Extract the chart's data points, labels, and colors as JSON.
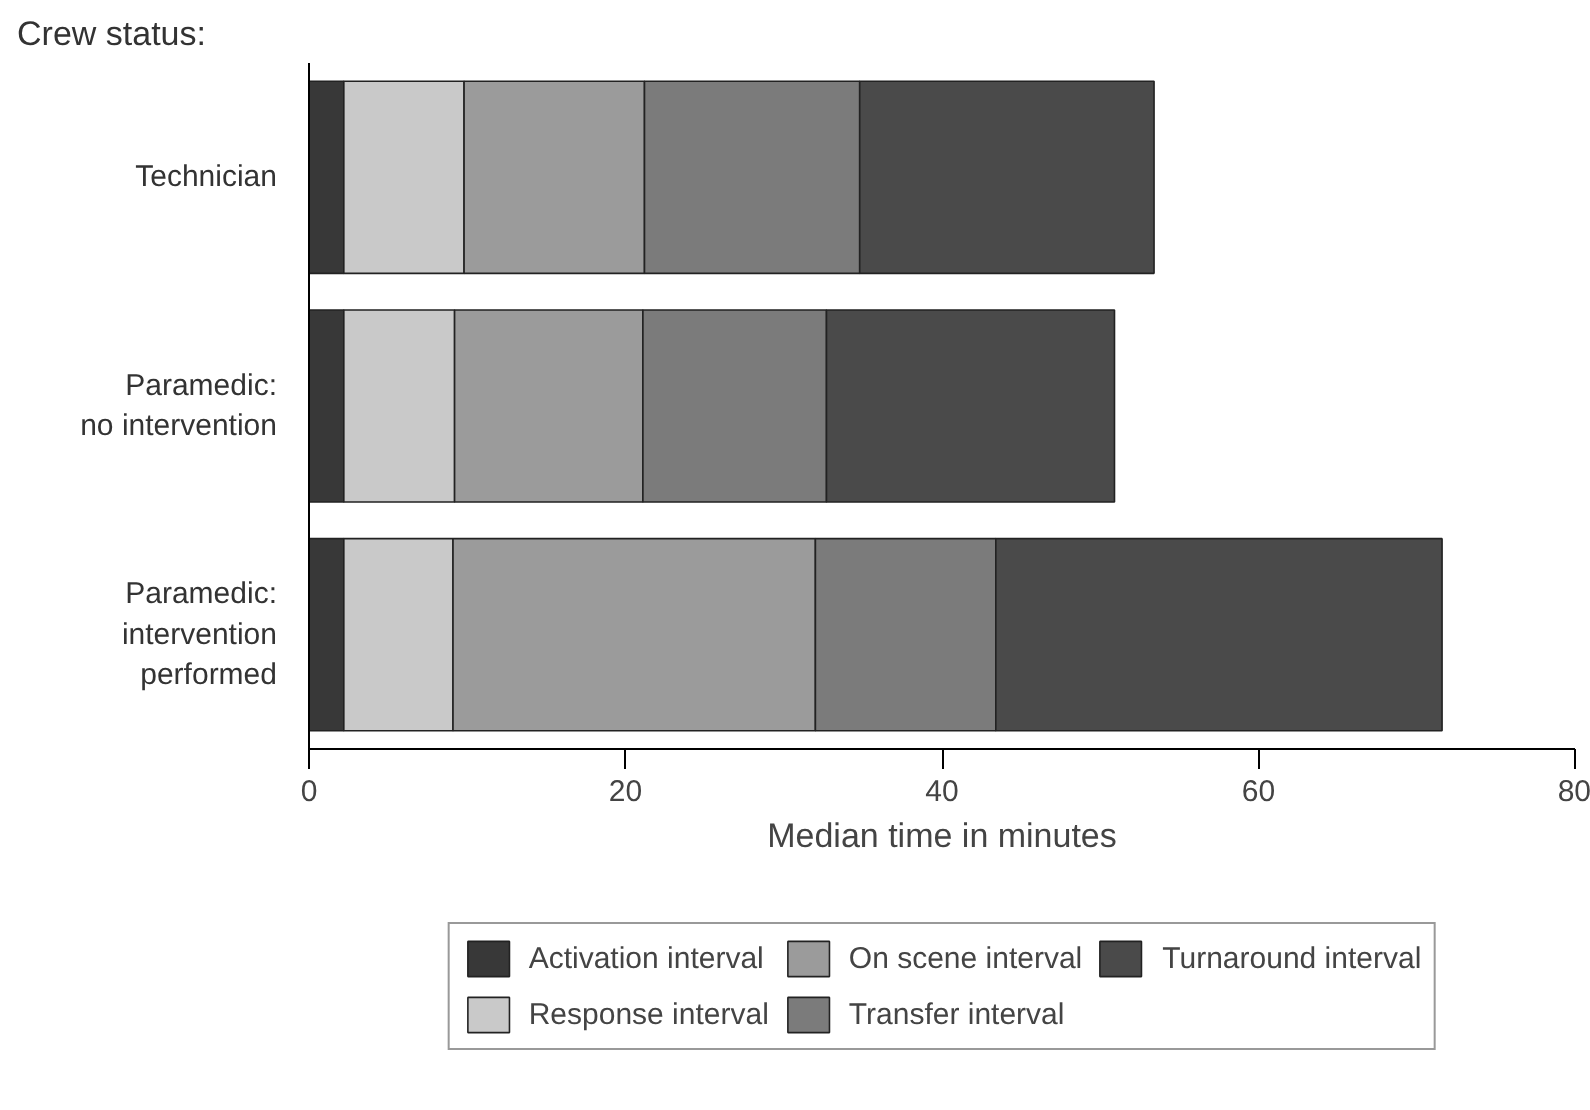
{
  "chart_data": {
    "type": "bar",
    "orientation": "horizontal",
    "stacked": true,
    "title": "Crew status:",
    "xlabel": "Median time in minutes",
    "categories": [
      "Technician",
      "Paramedic:\nno intervention",
      "Paramedic:\nintervention\nperformed"
    ],
    "series": [
      {
        "name": "Activation interval",
        "color": "#383838",
        "values": [
          2.2,
          2.2,
          2.2
        ]
      },
      {
        "name": "Response interval",
        "color": "#c9c9c9",
        "values": [
          7.6,
          7.0,
          6.9
        ]
      },
      {
        "name": "On scene interval",
        "color": "#9b9b9b",
        "values": [
          11.4,
          11.9,
          22.9
        ]
      },
      {
        "name": "Transfer interval",
        "color": "#7b7b7b",
        "values": [
          13.6,
          11.6,
          11.4
        ]
      },
      {
        "name": "Turnaround interval",
        "color": "#4a4a4a",
        "values": [
          18.6,
          18.2,
          28.2
        ]
      }
    ],
    "xlim": [
      0,
      80
    ],
    "xticks": [
      0,
      20,
      40,
      60,
      80
    ],
    "grid": false,
    "legend": "bottom"
  }
}
